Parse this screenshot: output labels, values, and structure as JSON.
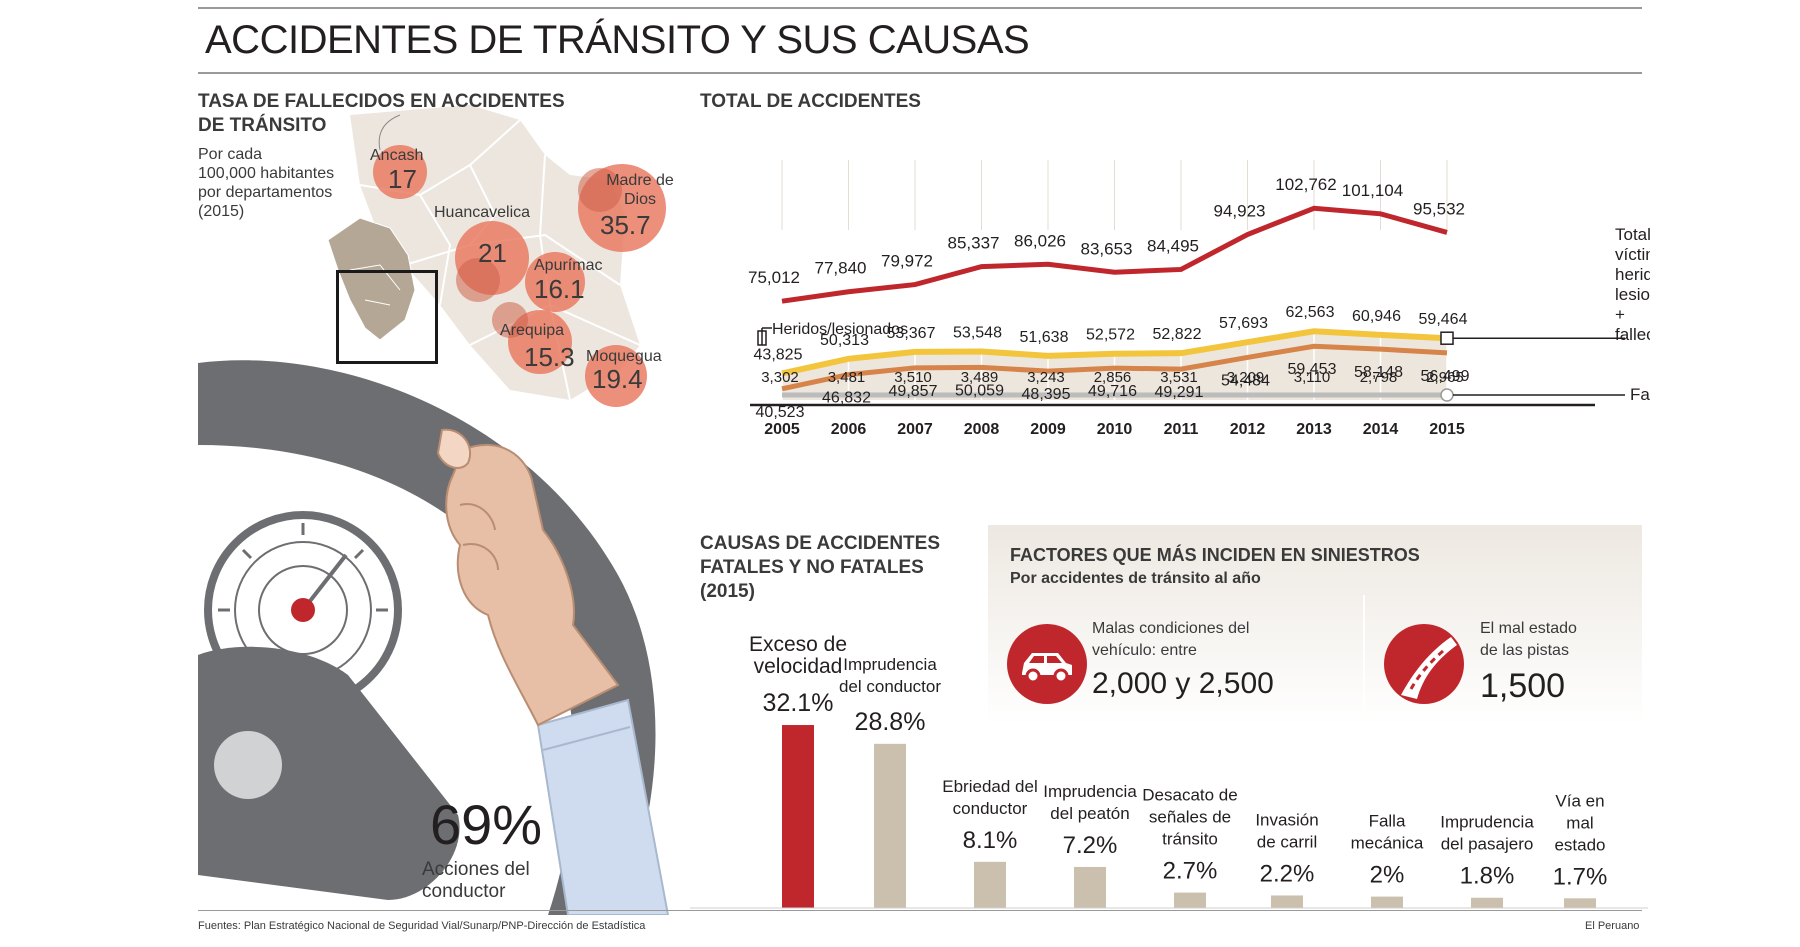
{
  "title": "ACCIDENTES DE TRÁNSITO Y SUS CAUSAS",
  "map": {
    "heading": "TASA DE FALLECIDOS EN ACCIDENTES DE TRÁNSITO",
    "subtitle_lines": [
      "Por cada",
      "100,000 habitantes",
      "por departamentos",
      "(2015)"
    ],
    "regions": [
      {
        "name": "Ancash",
        "value": "17"
      },
      {
        "name": "Huancavelica",
        "value": "21"
      },
      {
        "name": "Madre de Dios",
        "value": "35.7"
      },
      {
        "name": "Apurímac",
        "value": "16.1"
      },
      {
        "name": "Arequipa",
        "value": "15.3"
      },
      {
        "name": "Moquegua",
        "value": "19.4"
      }
    ],
    "colors": {
      "bubble": "#e8765e",
      "land": "#ece6de",
      "border": "#ffffff"
    }
  },
  "wheel": {
    "value": "69%",
    "label_lines": [
      "Acciones del",
      "conductor"
    ],
    "colors": {
      "wheel": "#6d6e71",
      "skin": "#e6bfa6",
      "shirt": "#cfdcef"
    }
  },
  "factors": {
    "heading": "FACTORES QUE MÁS INCIDEN EN SINIESTROS",
    "subheading": "Por accidentes de tránsito al año",
    "items": [
      {
        "icon": "car-icon",
        "label_lines": [
          "Malas condiciones del",
          "vehículo: entre"
        ],
        "value": "2,000 y 2,500"
      },
      {
        "icon": "road-icon",
        "label_lines": [
          "El mal estado",
          "de las pistas"
        ],
        "value": "1,500"
      }
    ],
    "colors": {
      "icon_bg": "#c0272d",
      "panel": "#ede8e1"
    }
  },
  "footer": {
    "source": "Fuentes: Plan Estratégico Nacional de Seguridad Vial/Sunarp/PNP-Dirección de Estadística",
    "credit": "El Peruano"
  },
  "chart_data": [
    {
      "type": "line",
      "title": "TOTAL DE ACCIDENTES",
      "x": [
        "2005",
        "2006",
        "2007",
        "2008",
        "2009",
        "2010",
        "2011",
        "2012",
        "2013",
        "2014",
        "2015"
      ],
      "grid": true,
      "colors": {
        "total": "#c0272d",
        "victims": "#f2c53d",
        "injured": "#d6844a",
        "deaths": "#bcbcbc",
        "area": "#ede6dc"
      },
      "series": [
        {
          "key": "total",
          "name": "",
          "values": [
            75012,
            77840,
            79972,
            85337,
            86026,
            83653,
            84495,
            94923,
            102762,
            101104,
            95532
          ],
          "labels": [
            "75,012",
            "77,840",
            "79,972",
            "85,337",
            "86,026",
            "83,653",
            "84,495",
            "94,923",
            "102,762",
            "101,104",
            "95,532"
          ]
        },
        {
          "key": "victims",
          "name": "Total de víctimas: heridos/ lesionados + fallecidos",
          "values": [
            43825,
            50313,
            53367,
            53548,
            51638,
            52572,
            52822,
            57693,
            62563,
            60946,
            59464
          ],
          "labels": [
            "43,825",
            "50,313",
            "53,367",
            "53,548",
            "51,638",
            "52,572",
            "52,822",
            "57,693",
            "62,563",
            "60,946",
            "59,464"
          ]
        },
        {
          "key": "injured",
          "name": "Heridos/lesionados",
          "values": [
            40523,
            46832,
            49857,
            50059,
            48395,
            49716,
            49291,
            54484,
            59453,
            58148,
            56499
          ],
          "labels": [
            "40,523",
            "46,832",
            "49,857",
            "50,059",
            "48,395",
            "49,716",
            "49,291",
            "54,484",
            "59,453",
            "58,148",
            "56,499"
          ]
        },
        {
          "key": "deaths",
          "name": "Fallecidos",
          "values": [
            3302,
            3481,
            3510,
            3489,
            3243,
            2856,
            3531,
            3209,
            3110,
            2798,
            2965
          ],
          "labels": [
            "3,302",
            "3,481",
            "3,510",
            "3,489",
            "3,243",
            "2,856",
            "3,531",
            "3,209",
            "3,110",
            "2,798",
            "2,965"
          ]
        }
      ]
    },
    {
      "type": "bar",
      "title": "CAUSAS DE ACCIDENTES FATALES Y NO FATALES (2015)",
      "categories": [
        "Exceso de velocidad",
        "Imprudencia del conductor",
        "Ebriedad del conductor",
        "Imprudencia del peatón",
        "Desacato de señales de tránsito",
        "Invasión de carril",
        "Falla mecánica",
        "Imprudencia del pasajero",
        "Vía en mal estado"
      ],
      "label_lines": [
        [
          "Exceso de",
          "velocidad"
        ],
        [
          "Imprudencia",
          "del conductor"
        ],
        [
          "Ebriedad del",
          "conductor"
        ],
        [
          "Imprudencia",
          "del peatón"
        ],
        [
          "Desacato de",
          "señales de",
          "tránsito"
        ],
        [
          "Invasión",
          "de carril"
        ],
        [
          "Falla",
          "mecánica"
        ],
        [
          "Imprudencia",
          "del pasajero"
        ],
        [
          "Vía en",
          "mal",
          "estado"
        ]
      ],
      "values": [
        32.1,
        28.8,
        8.1,
        7.2,
        2.7,
        2.2,
        2,
        1.8,
        1.7
      ],
      "value_labels": [
        "32.1%",
        "28.8%",
        "8.1%",
        "7.2%",
        "2.7%",
        "2.2%",
        "2%",
        "1.8%",
        "1.7%"
      ],
      "colors": {
        "highlight": "#c0272d",
        "bar": "#cbbfad"
      }
    }
  ]
}
